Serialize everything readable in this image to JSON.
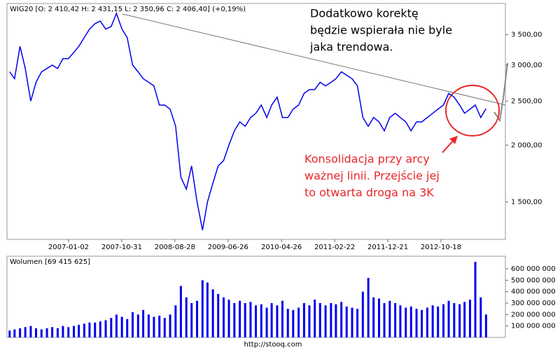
{
  "chart_data": [
    {
      "type": "line",
      "title": "WIG20 [O: 2 410,42 H: 2 431,15 L: 2 350,96 C: 2 406,40] (+0,19%)",
      "log_scale": true,
      "color": "#0000ee",
      "x": [
        "2006-02-01",
        "2006-03-01",
        "2006-04-01",
        "2006-05-01",
        "2006-06-01",
        "2006-07-01",
        "2006-08-01",
        "2006-09-01",
        "2006-10-01",
        "2006-11-01",
        "2006-12-01",
        "2007-01-01",
        "2007-02-01",
        "2007-03-01",
        "2007-04-01",
        "2007-05-01",
        "2007-06-01",
        "2007-07-01",
        "2007-08-01",
        "2007-09-01",
        "2007-10-01",
        "2007-11-01",
        "2007-12-01",
        "2008-01-01",
        "2008-02-01",
        "2008-03-01",
        "2008-04-01",
        "2008-05-01",
        "2008-06-01",
        "2008-07-01",
        "2008-08-01",
        "2008-09-01",
        "2008-10-01",
        "2008-11-01",
        "2008-12-01",
        "2009-01-01",
        "2009-02-01",
        "2009-03-01",
        "2009-04-01",
        "2009-05-01",
        "2009-06-01",
        "2009-07-01",
        "2009-08-01",
        "2009-09-01",
        "2009-10-01",
        "2009-11-01",
        "2009-12-01",
        "2010-01-01",
        "2010-02-01",
        "2010-03-01",
        "2010-04-01",
        "2010-05-01",
        "2010-06-01",
        "2010-07-01",
        "2010-08-01",
        "2010-09-01",
        "2010-10-01",
        "2010-11-01",
        "2010-12-01",
        "2011-01-01",
        "2011-02-01",
        "2011-03-01",
        "2011-04-01",
        "2011-05-01",
        "2011-06-01",
        "2011-07-01",
        "2011-08-01",
        "2011-09-01",
        "2011-10-01",
        "2011-11-01",
        "2011-12-01",
        "2012-01-01",
        "2012-02-01",
        "2012-03-01",
        "2012-04-01",
        "2012-05-01",
        "2012-06-01",
        "2012-07-01",
        "2012-08-01",
        "2012-09-01",
        "2012-10-01",
        "2012-11-01",
        "2012-12-01",
        "2013-01-01",
        "2013-02-01",
        "2013-03-01",
        "2013-04-01",
        "2013-05-01",
        "2013-06-01",
        "2013-07-01"
      ],
      "values": [
        2900,
        2800,
        3300,
        2950,
        2500,
        2750,
        2900,
        2950,
        3000,
        2950,
        3100,
        3100,
        3200,
        3300,
        3450,
        3600,
        3700,
        3750,
        3600,
        3650,
        3900,
        3600,
        3450,
        3000,
        2900,
        2800,
        2750,
        2700,
        2450,
        2450,
        2400,
        2200,
        1700,
        1600,
        1800,
        1500,
        1300,
        1500,
        1650,
        1800,
        1850,
        2000,
        2150,
        2250,
        2200,
        2300,
        2350,
        2450,
        2300,
        2450,
        2550,
        2300,
        2300,
        2400,
        2450,
        2600,
        2650,
        2650,
        2750,
        2700,
        2750,
        2800,
        2900,
        2850,
        2800,
        2700,
        2300,
        2200,
        2300,
        2250,
        2150,
        2300,
        2350,
        2300,
        2250,
        2150,
        2250,
        2250,
        2300,
        2350,
        2400,
        2450,
        2600,
        2550,
        2450,
        2350,
        2400,
        2450,
        2300,
        2406.4
      ],
      "xlim": [
        "2006-01-17",
        "2013-10-19"
      ],
      "xticks": [
        "2007-01-02",
        "2007-10-31",
        "2008-08-28",
        "2009-06-26",
        "2010-04-26",
        "2011-02-22",
        "2011-12-21",
        "2012-10-18"
      ],
      "ylim": [
        1240,
        4100
      ],
      "yticks": [
        {
          "value": 1500,
          "label": "1 500,00"
        },
        {
          "value": 2000,
          "label": "2 000,00"
        },
        {
          "value": 2500,
          "label": "2 500,00"
        },
        {
          "value": 3000,
          "label": "3 000,00"
        },
        {
          "value": 3500,
          "label": "3 500,00"
        }
      ],
      "annotations": [
        {
          "color": "#000000",
          "lines": [
            "Dodatkowo korektę",
            "będzie wspierała nie byle",
            "jaka trendowa."
          ]
        },
        {
          "color": "#e8262a",
          "lines": [
            "Konsolidacja przy arcy",
            "ważnej linii. Przejście jej",
            "to otwarta droga na 3K"
          ]
        }
      ]
    },
    {
      "type": "bar",
      "title": "Wolumen [69 415 625]",
      "color": "#0000ee",
      "x": [
        "2006-02-01",
        "2006-03-01",
        "2006-04-01",
        "2006-05-01",
        "2006-06-01",
        "2006-07-01",
        "2006-08-01",
        "2006-09-01",
        "2006-10-01",
        "2006-11-01",
        "2006-12-01",
        "2007-01-01",
        "2007-02-01",
        "2007-03-01",
        "2007-04-01",
        "2007-05-01",
        "2007-06-01",
        "2007-07-01",
        "2007-08-01",
        "2007-09-01",
        "2007-10-01",
        "2007-11-01",
        "2007-12-01",
        "2008-01-01",
        "2008-02-01",
        "2008-03-01",
        "2008-04-01",
        "2008-05-01",
        "2008-06-01",
        "2008-07-01",
        "2008-08-01",
        "2008-09-01",
        "2008-10-01",
        "2008-11-01",
        "2008-12-01",
        "2009-01-01",
        "2009-02-01",
        "2009-03-01",
        "2009-04-01",
        "2009-05-01",
        "2009-06-01",
        "2009-07-01",
        "2009-08-01",
        "2009-09-01",
        "2009-10-01",
        "2009-11-01",
        "2009-12-01",
        "2010-01-01",
        "2010-02-01",
        "2010-03-01",
        "2010-04-01",
        "2010-05-01",
        "2010-06-01",
        "2010-07-01",
        "2010-08-01",
        "2010-09-01",
        "2010-10-01",
        "2010-11-01",
        "2010-12-01",
        "2011-01-01",
        "2011-02-01",
        "2011-03-01",
        "2011-04-01",
        "2011-05-01",
        "2011-06-01",
        "2011-07-01",
        "2011-08-01",
        "2011-09-01",
        "2011-10-01",
        "2011-11-01",
        "2011-12-01",
        "2012-01-01",
        "2012-02-01",
        "2012-03-01",
        "2012-04-01",
        "2012-05-01",
        "2012-06-01",
        "2012-07-01",
        "2012-08-01",
        "2012-09-01",
        "2012-10-01",
        "2012-11-01",
        "2012-12-01",
        "2013-01-01",
        "2013-02-01",
        "2013-03-01",
        "2013-04-01",
        "2013-05-01",
        "2013-06-01",
        "2013-07-01"
      ],
      "values": [
        60000000,
        70000000,
        80000000,
        90000000,
        100000000,
        80000000,
        70000000,
        80000000,
        90000000,
        80000000,
        100000000,
        90000000,
        100000000,
        110000000,
        120000000,
        130000000,
        130000000,
        140000000,
        150000000,
        170000000,
        200000000,
        180000000,
        160000000,
        220000000,
        200000000,
        240000000,
        200000000,
        180000000,
        190000000,
        170000000,
        200000000,
        280000000,
        450000000,
        350000000,
        300000000,
        320000000,
        500000000,
        480000000,
        420000000,
        380000000,
        350000000,
        330000000,
        300000000,
        320000000,
        300000000,
        310000000,
        280000000,
        290000000,
        260000000,
        300000000,
        280000000,
        320000000,
        250000000,
        240000000,
        260000000,
        300000000,
        280000000,
        330000000,
        300000000,
        280000000,
        300000000,
        290000000,
        310000000,
        270000000,
        260000000,
        250000000,
        400000000,
        520000000,
        350000000,
        340000000,
        300000000,
        320000000,
        300000000,
        280000000,
        260000000,
        270000000,
        250000000,
        240000000,
        260000000,
        280000000,
        270000000,
        290000000,
        320000000,
        300000000,
        290000000,
        310000000,
        330000000,
        660000000,
        350000000,
        200000000
      ],
      "xlim": [
        "2006-01-17",
        "2013-10-19"
      ],
      "ylim": [
        0,
        710000000
      ],
      "yticks": [
        {
          "value": 100000000,
          "label": "100 000 000"
        },
        {
          "value": 200000000,
          "label": "200 000 000"
        },
        {
          "value": 300000000,
          "label": "300 000 000"
        },
        {
          "value": 400000000,
          "label": "400 000 000"
        },
        {
          "value": 500000000,
          "label": "500 000 000"
        },
        {
          "value": 600000000,
          "label": "600 000 000"
        }
      ]
    }
  ],
  "footer": "http://stooq.com"
}
